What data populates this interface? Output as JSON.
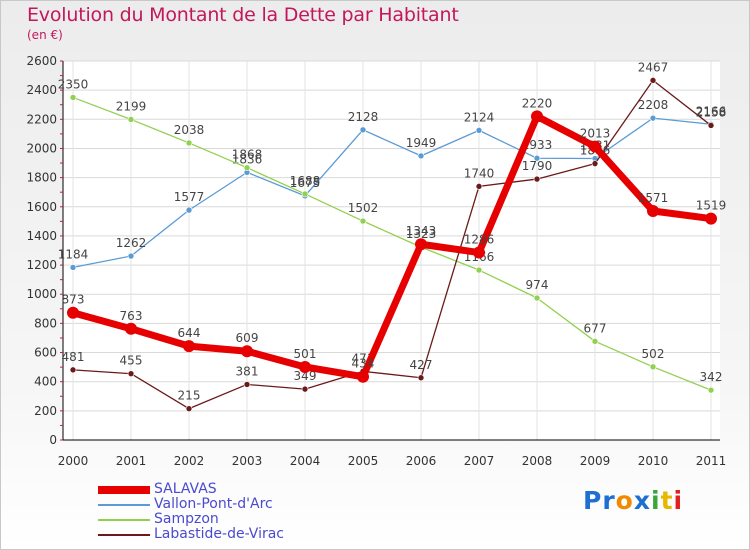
{
  "chart_data": {
    "type": "line",
    "title": "Evolution du Montant de la Dette par Habitant",
    "subtitle": "(en €)",
    "categories": [
      "2000",
      "2001",
      "2002",
      "2003",
      "2004",
      "2005",
      "2006",
      "2007",
      "2008",
      "2009",
      "2010",
      "2011"
    ],
    "ylim": [
      0,
      2600
    ],
    "yticks": [
      0,
      200,
      400,
      600,
      800,
      1000,
      1200,
      1400,
      1600,
      1800,
      2000,
      2200,
      2400,
      2600
    ],
    "grid": true,
    "legend_position": "bottom-left",
    "series": [
      {
        "name": "SALAVAS",
        "color": "#e60000",
        "values": [
          873,
          763,
          644,
          609,
          501,
          434,
          1343,
          1286,
          2220,
          2013,
          1571,
          1519
        ]
      },
      {
        "name": "Vallon-Pont-d'Arc",
        "color": "#5b9bd5",
        "values": [
          1184,
          1262,
          1577,
          1836,
          1675,
          2128,
          1949,
          2124,
          1933,
          1931,
          2208,
          2166
        ]
      },
      {
        "name": "Sampzon",
        "color": "#92d050",
        "values": [
          2350,
          2199,
          2038,
          1868,
          1688,
          1502,
          1323,
          1166,
          974,
          677,
          502,
          342
        ]
      },
      {
        "name": "Labastide-de-Virac",
        "color": "#6b1a1a",
        "values": [
          481,
          455,
          215,
          381,
          349,
          471,
          427,
          1740,
          1790,
          1896,
          2467,
          2158
        ]
      }
    ]
  },
  "brand": {
    "text": "Proxiti",
    "letters": [
      "P",
      "r",
      "o",
      "x",
      "i",
      "t",
      "i"
    ],
    "letter_colors": [
      "#1f6fd1",
      "#1f6fd1",
      "#f08a00",
      "#1f6fd1",
      "#3aa63a",
      "#e6b800",
      "#e02020"
    ]
  }
}
